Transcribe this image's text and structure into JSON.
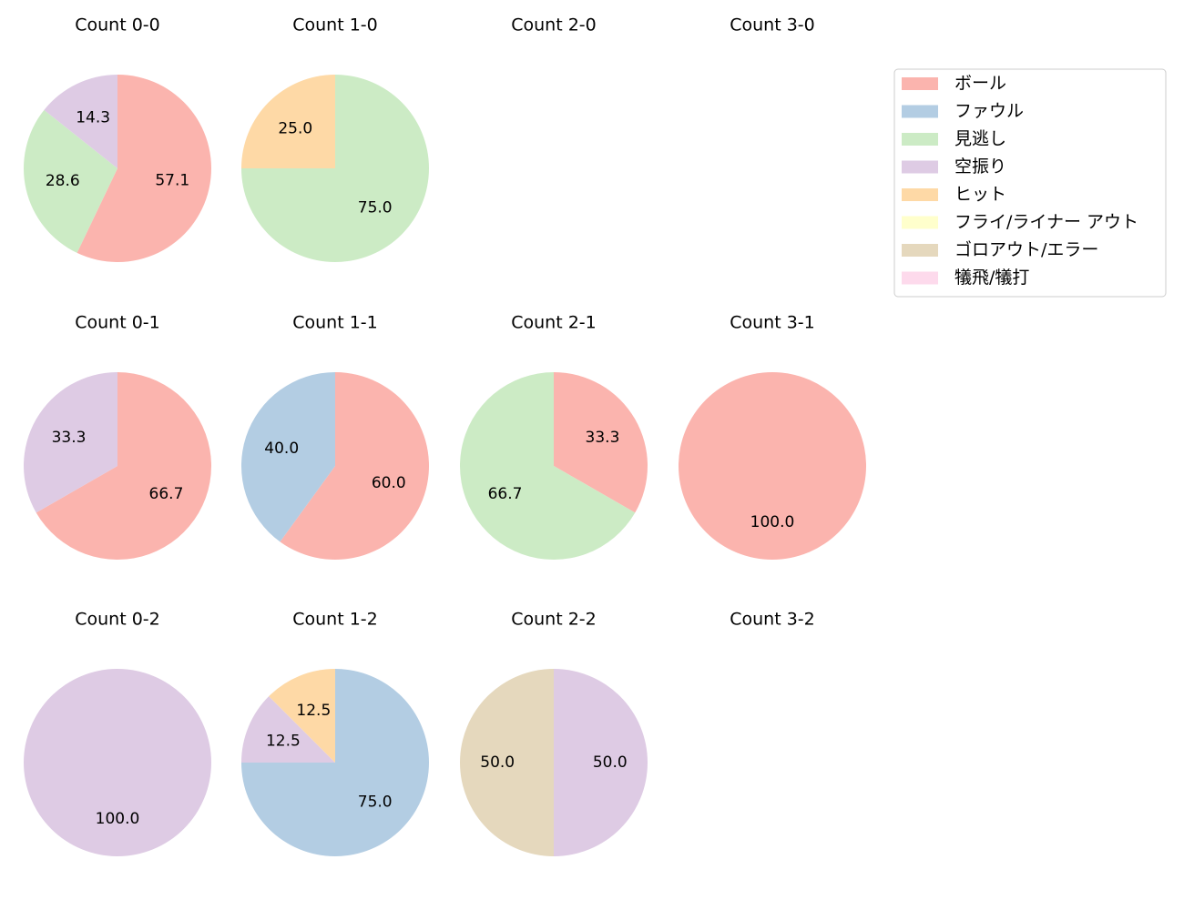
{
  "chart_data": [
    {
      "type": "pie",
      "title": "Count 0-0",
      "categories": [
        "ボール",
        "見逃し",
        "空振り"
      ],
      "values": [
        57.1,
        28.6,
        14.3
      ],
      "value_labels": [
        "57.1",
        "28.6",
        "14.3"
      ],
      "colors": [
        "#fbb4ae",
        "#ccebc5",
        "#decbe4"
      ]
    },
    {
      "type": "pie",
      "title": "Count 1-0",
      "categories": [
        "見逃し",
        "ヒット"
      ],
      "values": [
        75.0,
        25.0
      ],
      "value_labels": [
        "75.0",
        "25.0"
      ],
      "colors": [
        "#ccebc5",
        "#fed9a6"
      ]
    },
    {
      "type": "pie",
      "title": "Count 2-0",
      "categories": [],
      "values": [],
      "value_labels": [],
      "colors": []
    },
    {
      "type": "pie",
      "title": "Count 3-0",
      "categories": [],
      "values": [],
      "value_labels": [],
      "colors": []
    },
    {
      "type": "pie",
      "title": "Count 0-1",
      "categories": [
        "ボール",
        "空振り"
      ],
      "values": [
        66.7,
        33.3
      ],
      "value_labels": [
        "66.7",
        "33.3"
      ],
      "colors": [
        "#fbb4ae",
        "#decbe4"
      ]
    },
    {
      "type": "pie",
      "title": "Count 1-1",
      "categories": [
        "ボール",
        "ファウル"
      ],
      "values": [
        60.0,
        40.0
      ],
      "value_labels": [
        "60.0",
        "40.0"
      ],
      "colors": [
        "#fbb4ae",
        "#b3cde3"
      ]
    },
    {
      "type": "pie",
      "title": "Count 2-1",
      "categories": [
        "ボール",
        "見逃し"
      ],
      "values": [
        33.3,
        66.7
      ],
      "value_labels": [
        "33.3",
        "66.7"
      ],
      "colors": [
        "#fbb4ae",
        "#ccebc5"
      ]
    },
    {
      "type": "pie",
      "title": "Count 3-1",
      "categories": [
        "ボール"
      ],
      "values": [
        100.0
      ],
      "value_labels": [
        "100.0"
      ],
      "colors": [
        "#fbb4ae"
      ]
    },
    {
      "type": "pie",
      "title": "Count 0-2",
      "categories": [
        "空振り"
      ],
      "values": [
        100.0
      ],
      "value_labels": [
        "100.0"
      ],
      "colors": [
        "#decbe4"
      ]
    },
    {
      "type": "pie",
      "title": "Count 1-2",
      "categories": [
        "ファウル",
        "空振り",
        "ヒット"
      ],
      "values": [
        75.0,
        12.5,
        12.5
      ],
      "value_labels": [
        "75.0",
        "12.5",
        "12.5"
      ],
      "colors": [
        "#b3cde3",
        "#decbe4",
        "#fed9a6"
      ]
    },
    {
      "type": "pie",
      "title": "Count 2-2",
      "categories": [
        "空振り",
        "ゴロアウト/エラー"
      ],
      "values": [
        50.0,
        50.0
      ],
      "value_labels": [
        "50.0",
        "50.0"
      ],
      "colors": [
        "#decbe4",
        "#e5d8bd"
      ]
    },
    {
      "type": "pie",
      "title": "Count 3-2",
      "categories": [],
      "values": [],
      "value_labels": [],
      "colors": []
    }
  ],
  "legend": {
    "position": "upper right",
    "labels": [
      "ボール",
      "ファウル",
      "見逃し",
      "空振り",
      "ヒット",
      "フライ/ライナー アウト",
      "ゴロアウト/エラー",
      "犠飛/犠打"
    ],
    "colors": [
      "#fbb4ae",
      "#b3cde3",
      "#ccebc5",
      "#decbe4",
      "#fed9a6",
      "#ffffcc",
      "#e5d8bd",
      "#fddaec"
    ]
  }
}
